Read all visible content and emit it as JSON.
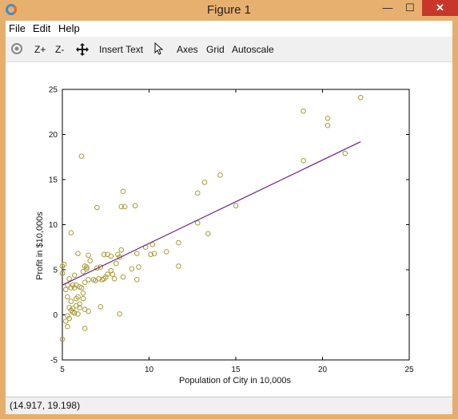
{
  "window": {
    "title": "Figure 1",
    "minimize": "—",
    "maximize": "☐",
    "close": "✕"
  },
  "menu": {
    "file": "File",
    "edit": "Edit",
    "help": "Help"
  },
  "toolbar": {
    "zoom_in": "Z+",
    "zoom_out": "Z-",
    "insert_text": "Insert Text",
    "axes": "Axes",
    "grid": "Grid",
    "autoscale": "Autoscale"
  },
  "status": {
    "coords": "(14.917, 19.198)"
  },
  "colors": {
    "marker": "#a89c3a",
    "line": "#6b1e7a",
    "title_bar": "#e8b06e",
    "close": "#c8362b"
  },
  "chart_data": {
    "type": "scatter",
    "xlabel": "Population of City in 10,000s",
    "ylabel": "Profit in $10,000s",
    "xlim": [
      5,
      25
    ],
    "ylim": [
      -5,
      25
    ],
    "xticks": [
      5,
      10,
      15,
      20,
      25
    ],
    "yticks": [
      -5,
      0,
      5,
      10,
      15,
      20,
      25
    ],
    "grid": false,
    "points": [
      [
        6.1,
        17.6
      ],
      [
        5.5,
        9.1
      ],
      [
        8.5,
        13.7
      ],
      [
        7.0,
        11.9
      ],
      [
        5.9,
        6.8
      ],
      [
        8.4,
        12.0
      ],
      [
        8.6,
        12.0
      ],
      [
        9.2,
        12.1
      ],
      [
        12.8,
        13.5
      ],
      [
        13.2,
        14.7
      ],
      [
        14.1,
        15.5
      ],
      [
        15.0,
        12.1
      ],
      [
        18.9,
        22.6
      ],
      [
        20.3,
        21.8
      ],
      [
        20.3,
        21.0
      ],
      [
        22.2,
        24.1
      ],
      [
        21.3,
        17.9
      ],
      [
        18.9,
        17.1
      ],
      [
        12.8,
        10.2
      ],
      [
        13.4,
        9.0
      ],
      [
        11.7,
        8.0
      ],
      [
        11.7,
        5.4
      ],
      [
        11.0,
        7.0
      ],
      [
        10.2,
        7.8
      ],
      [
        10.1,
        6.7
      ],
      [
        10.3,
        6.8
      ],
      [
        9.8,
        7.5
      ],
      [
        9.3,
        6.8
      ],
      [
        9.0,
        5.1
      ],
      [
        9.4,
        5.3
      ],
      [
        9.3,
        3.9
      ],
      [
        8.5,
        4.2
      ],
      [
        8.3,
        6.4
      ],
      [
        8.2,
        6.7
      ],
      [
        8.4,
        7.2
      ],
      [
        8.1,
        5.7
      ],
      [
        7.8,
        6.5
      ],
      [
        7.6,
        6.7
      ],
      [
        7.4,
        6.7
      ],
      [
        7.2,
        5.3
      ],
      [
        7.0,
        5.2
      ],
      [
        7.1,
        4.0
      ],
      [
        7.5,
        4.2
      ],
      [
        7.6,
        4.5
      ],
      [
        7.4,
        4.0
      ],
      [
        7.8,
        4.9
      ],
      [
        8.0,
        4.0
      ],
      [
        7.9,
        4.5
      ],
      [
        7.3,
        3.9
      ],
      [
        6.9,
        3.8
      ],
      [
        6.6,
        6.0
      ],
      [
        6.5,
        6.6
      ],
      [
        6.4,
        5.1
      ],
      [
        6.3,
        5.4
      ],
      [
        6.4,
        5.3
      ],
      [
        6.2,
        4.8
      ],
      [
        6.3,
        3.6
      ],
      [
        6.1,
        3.0
      ],
      [
        6.0,
        3.1
      ],
      [
        5.8,
        3.3
      ],
      [
        5.7,
        3.0
      ],
      [
        5.6,
        3.3
      ],
      [
        5.5,
        3.0
      ],
      [
        5.7,
        4.4
      ],
      [
        5.4,
        4.0
      ],
      [
        5.3,
        3.3
      ],
      [
        5.1,
        5.6
      ],
      [
        5.0,
        5.4
      ],
      [
        5.0,
        4.6
      ],
      [
        5.2,
        2.8
      ],
      [
        5.3,
        2.0
      ],
      [
        5.5,
        1.5
      ],
      [
        5.8,
        1.8
      ],
      [
        5.9,
        2.0
      ],
      [
        5.4,
        0.8
      ],
      [
        5.6,
        0.3
      ],
      [
        5.5,
        0.5
      ],
      [
        5.7,
        0.2
      ],
      [
        5.3,
        -0.1
      ],
      [
        5.2,
        -0.7
      ],
      [
        5.3,
        -1.3
      ],
      [
        5.0,
        -2.7
      ],
      [
        5.8,
        1.0
      ],
      [
        6.0,
        0.8
      ],
      [
        6.2,
        1.8
      ],
      [
        6.0,
        1.2
      ],
      [
        6.3,
        0.6
      ],
      [
        6.5,
        0.4
      ],
      [
        6.3,
        -1.5
      ],
      [
        6.8,
        3.9
      ],
      [
        7.2,
        0.9
      ],
      [
        5.6,
        0.7
      ],
      [
        5.4,
        -0.4
      ],
      [
        6.5,
        3.9
      ],
      [
        8.3,
        0.1
      ],
      [
        5.9,
        0.1
      ],
      [
        6.2,
        2.4
      ]
    ],
    "fit_line": {
      "x": [
        5.0,
        22.2
      ],
      "y": [
        3.3,
        19.2
      ]
    }
  }
}
